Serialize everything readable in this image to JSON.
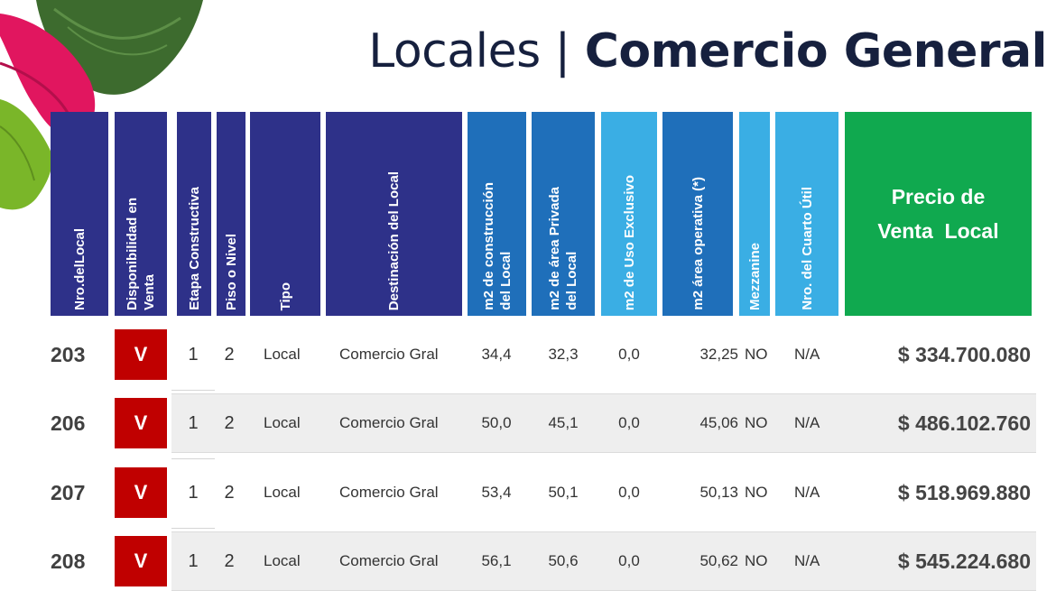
{
  "title": {
    "light": "Locales | ",
    "bold": "Comercio General"
  },
  "headers": {
    "nro": "Nro.delLocal",
    "disponibilidad": "Disponibilidad en\nVenta",
    "etapa": "Etapa Constructiva",
    "piso": "Piso o Nivel",
    "tipo": "Tipo",
    "destinacion": "Destinación del Local",
    "m2_construccion": "m2 de construcción\ndel Local",
    "m2_privada": "m2 de área Privada\ndel Local",
    "m2_uso": "m2 de Uso Exclusivo",
    "m2_operativa": "m2 área operativa (*)",
    "mezzanine": "Mezzanine",
    "cuarto": "Nro. del Cuarto Útil",
    "precio": "Precio de\nVenta  Local"
  },
  "colors": {
    "navy": "#2e3189",
    "blue": "#1f6fba",
    "light_blue": "#3aaee4",
    "green": "#10a94f",
    "red": "#c00000",
    "title": "#16203e"
  },
  "rows": [
    {
      "nro": "203",
      "disp": "V",
      "etapa": "1",
      "piso": "2",
      "tipo": "Local",
      "dest": "Comercio Gral",
      "m2c": "34,4",
      "m2p": "32,3",
      "m2u": "0,0",
      "m2o": "32,25",
      "mezz": "NO",
      "cuarto": "N/A",
      "precio": "$ 334.700.080"
    },
    {
      "nro": "206",
      "disp": "V",
      "etapa": "1",
      "piso": "2",
      "tipo": "Local",
      "dest": "Comercio Gral",
      "m2c": "50,0",
      "m2p": "45,1",
      "m2u": "0,0",
      "m2o": "45,06",
      "mezz": "NO",
      "cuarto": "N/A",
      "precio": "$ 486.102.760"
    },
    {
      "nro": "207",
      "disp": "V",
      "etapa": "1",
      "piso": "2",
      "tipo": "Local",
      "dest": "Comercio Gral",
      "m2c": "53,4",
      "m2p": "50,1",
      "m2u": "0,0",
      "m2o": "50,13",
      "mezz": "NO",
      "cuarto": "N/A",
      "precio": "$ 518.969.880"
    },
    {
      "nro": "208",
      "disp": "V",
      "etapa": "1",
      "piso": "2",
      "tipo": "Local",
      "dest": "Comercio Gral",
      "m2c": "56,1",
      "m2p": "50,6",
      "m2u": "0,0",
      "m2o": "50,62",
      "mezz": "NO",
      "cuarto": "N/A",
      "precio": "$ 545.224.680"
    }
  ]
}
